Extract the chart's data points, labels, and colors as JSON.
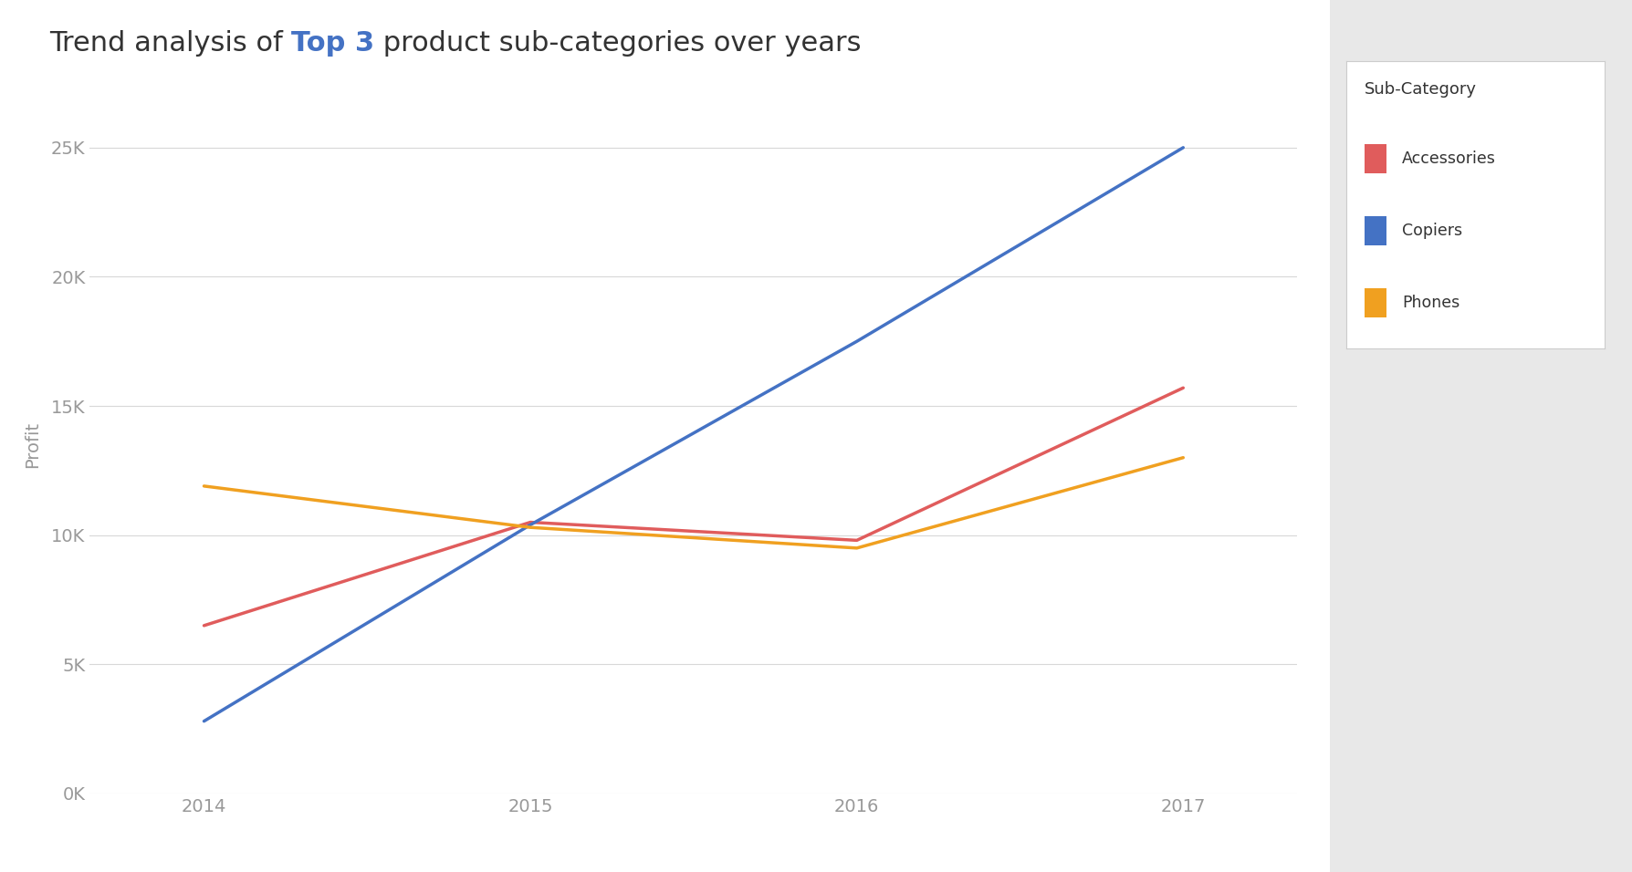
{
  "title_prefix": "Trend analysis of ",
  "title_highlight": "Top 3",
  "title_suffix": " product sub-categories over years",
  "ylabel": "Profit",
  "legend_title": "Sub-Category",
  "years": [
    2014,
    2015,
    2016,
    2017
  ],
  "series": {
    "Accessories": {
      "values": [
        6500,
        10500,
        9800,
        15700
      ],
      "color": "#E05C5C"
    },
    "Copiers": {
      "values": [
        2800,
        10400,
        17500,
        25000
      ],
      "color": "#4472C4"
    },
    "Phones": {
      "values": [
        11900,
        10300,
        9500,
        13000
      ],
      "color": "#F0A020"
    }
  },
  "ylim": [
    0,
    27000
  ],
  "yticks": [
    0,
    5000,
    10000,
    15000,
    20000,
    25000
  ],
  "ytick_labels": [
    "0K",
    "5K",
    "10K",
    "15K",
    "20K",
    "25K"
  ],
  "background_color": "#ffffff",
  "plot_bg_color": "#ffffff",
  "grid_color": "#d8d8d8",
  "axis_color": "#999999",
  "title_color": "#333333",
  "title_fontsize": 22,
  "highlight_color": "#4472C4",
  "right_panel_color": "#e8e8e8",
  "line_width": 2.5
}
